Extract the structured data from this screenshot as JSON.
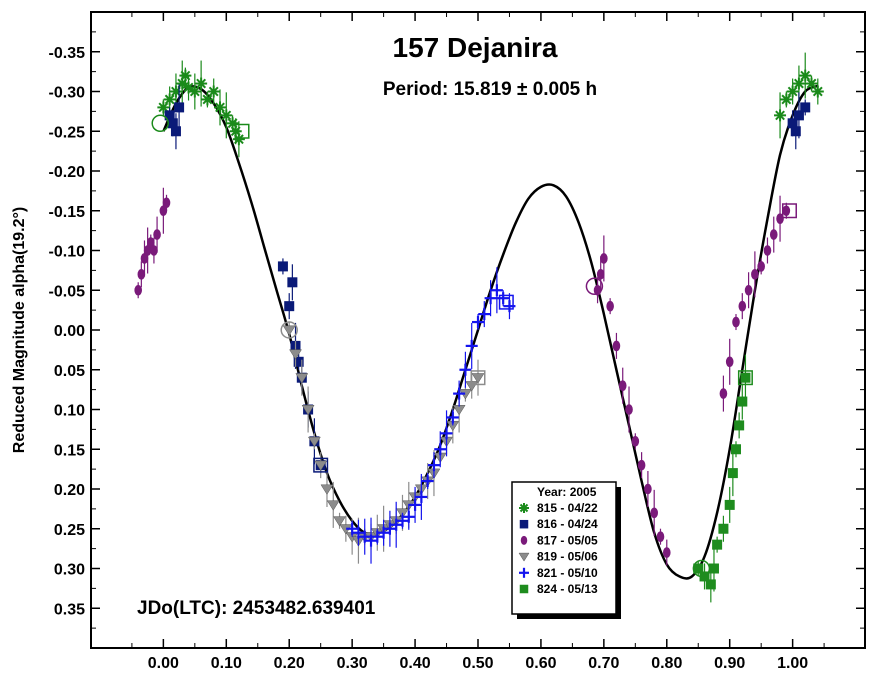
{
  "chart_data": {
    "type": "scatter",
    "title": "157 Dejanira",
    "subtitle": "Period: 15.819 ± 0.005 h",
    "annotation": "JDo(LTC): 2453482.639401",
    "xlabel": "",
    "ylabel": "Reduced Magnitude alpha(19.2°)",
    "xlim": [
      -0.115,
      1.115
    ],
    "ylim": [
      0.4,
      -0.4
    ],
    "y_inverted": true,
    "grid": false,
    "xticks": [
      0.0,
      0.1,
      0.2,
      0.3,
      0.4,
      0.5,
      0.6,
      0.7,
      0.8,
      0.9,
      1.0
    ],
    "xtick_labels": [
      "0.00",
      "0.10",
      "0.20",
      "0.30",
      "0.40",
      "0.50",
      "0.60",
      "0.70",
      "0.80",
      "0.90",
      "1.00"
    ],
    "yticks": [
      -0.35,
      -0.3,
      -0.25,
      -0.2,
      -0.15,
      -0.1,
      -0.05,
      0.0,
      0.05,
      0.1,
      0.15,
      0.2,
      0.25,
      0.3,
      0.35
    ],
    "ytick_labels": [
      "-0.35",
      "-0.30",
      "-0.25",
      "-0.20",
      "-0.15",
      "-0.10",
      "-0.05",
      "0.00",
      "0.05",
      "0.10",
      "0.15",
      "0.20",
      "0.25",
      "0.30",
      "0.35"
    ],
    "legend": {
      "placement": "bottom-right",
      "title": "Year: 2005",
      "entries": [
        {
          "label": "815 - 04/22",
          "marker": "asterisk",
          "color": "#1a8a1a"
        },
        {
          "label": "816 - 04/24",
          "marker": "square",
          "color": "#0a1a78"
        },
        {
          "label": "817 - 05/05",
          "marker": "diamond",
          "color": "#7a1a7a"
        },
        {
          "label": "819 - 05/06",
          "marker": "triangle-down",
          "color": "#8c8c8c"
        },
        {
          "label": "821 - 05/10",
          "marker": "plus",
          "color": "#1414ee"
        },
        {
          "label": "824 - 05/13",
          "marker": "square",
          "color": "#1e8c1e"
        }
      ]
    },
    "fit_curve": {
      "color": "#000000",
      "x": [
        0.0,
        0.02,
        0.04,
        0.06,
        0.08,
        0.1,
        0.12,
        0.14,
        0.16,
        0.18,
        0.2,
        0.22,
        0.24,
        0.26,
        0.28,
        0.3,
        0.32,
        0.34,
        0.36,
        0.38,
        0.4,
        0.42,
        0.44,
        0.46,
        0.48,
        0.5,
        0.52,
        0.54,
        0.56,
        0.58,
        0.6,
        0.62,
        0.64,
        0.66,
        0.68,
        0.7,
        0.72,
        0.74,
        0.76,
        0.78,
        0.8,
        0.82,
        0.84,
        0.86,
        0.88,
        0.9,
        0.92,
        0.94,
        0.96,
        0.98,
        1.0,
        1.02,
        1.04
      ],
      "y": [
        -0.25,
        -0.285,
        -0.305,
        -0.303,
        -0.285,
        -0.255,
        -0.21,
        -0.16,
        -0.105,
        -0.05,
        0.005,
        0.07,
        0.13,
        0.18,
        0.215,
        0.24,
        0.255,
        0.255,
        0.248,
        0.232,
        0.21,
        0.18,
        0.145,
        0.1,
        0.05,
        0.0,
        -0.05,
        -0.095,
        -0.135,
        -0.165,
        -0.18,
        -0.182,
        -0.168,
        -0.135,
        -0.085,
        -0.02,
        0.05,
        0.12,
        0.19,
        0.255,
        0.295,
        0.31,
        0.31,
        0.285,
        0.23,
        0.15,
        0.05,
        -0.05,
        -0.14,
        -0.22,
        -0.27,
        -0.3,
        -0.307
      ]
    },
    "series": [
      {
        "name": "815 - 04/22",
        "marker": "asterisk",
        "color": "#1a8a1a",
        "x": [
          0.0,
          0.01,
          0.02,
          0.03,
          0.035,
          0.04,
          0.05,
          0.06,
          0.07,
          0.08,
          0.09,
          0.1,
          0.11,
          0.115,
          0.12,
          0.98,
          0.99,
          1.0,
          1.01,
          1.02,
          1.03,
          1.04
        ],
        "y": [
          -0.28,
          -0.29,
          -0.3,
          -0.31,
          -0.32,
          -0.305,
          -0.3,
          -0.31,
          -0.29,
          -0.3,
          -0.28,
          -0.27,
          -0.26,
          -0.25,
          -0.24,
          -0.27,
          -0.29,
          -0.3,
          -0.31,
          -0.32,
          -0.31,
          -0.3
        ]
      },
      {
        "name": "816 - 04/24",
        "marker": "square",
        "color": "#0a1a78",
        "x": [
          0.01,
          0.015,
          0.02,
          0.025,
          0.19,
          0.2,
          0.205,
          0.21,
          0.215,
          0.22,
          0.23,
          0.24,
          0.25,
          1.0,
          1.005,
          1.01,
          1.02
        ],
        "y": [
          -0.27,
          -0.26,
          -0.25,
          -0.28,
          -0.08,
          -0.03,
          -0.06,
          0.02,
          0.04,
          0.06,
          0.1,
          0.14,
          0.17,
          -0.26,
          -0.25,
          -0.27,
          -0.28
        ]
      },
      {
        "name": "817 - 05/05",
        "marker": "diamond",
        "color": "#7a1a7a",
        "x": [
          -0.04,
          -0.035,
          -0.03,
          -0.025,
          -0.02,
          -0.015,
          -0.01,
          0.0,
          0.005,
          0.69,
          0.695,
          0.7,
          0.71,
          0.72,
          0.73,
          0.74,
          0.75,
          0.76,
          0.77,
          0.78,
          0.79,
          0.8,
          0.89,
          0.9,
          0.91,
          0.92,
          0.93,
          0.94,
          0.95,
          0.96,
          0.97,
          0.98,
          0.99
        ],
        "y": [
          -0.05,
          -0.07,
          -0.09,
          -0.1,
          -0.11,
          -0.1,
          -0.12,
          -0.15,
          -0.16,
          -0.05,
          -0.07,
          -0.09,
          -0.03,
          0.02,
          0.07,
          0.1,
          0.14,
          0.17,
          0.2,
          0.23,
          0.26,
          0.28,
          0.08,
          0.04,
          -0.01,
          -0.03,
          -0.05,
          -0.07,
          -0.08,
          -0.1,
          -0.12,
          -0.14,
          -0.15
        ]
      },
      {
        "name": "819 - 05/06",
        "marker": "triangle-down",
        "color": "#8c8c8c",
        "x": [
          0.2,
          0.21,
          0.22,
          0.23,
          0.24,
          0.25,
          0.26,
          0.27,
          0.28,
          0.29,
          0.3,
          0.31,
          0.32,
          0.33,
          0.34,
          0.35,
          0.36,
          0.37,
          0.38,
          0.39,
          0.4,
          0.41,
          0.42,
          0.43,
          0.44,
          0.45,
          0.46,
          0.47,
          0.48,
          0.49,
          0.5
        ],
        "y": [
          0.0,
          0.03,
          0.06,
          0.1,
          0.14,
          0.17,
          0.2,
          0.22,
          0.24,
          0.25,
          0.26,
          0.265,
          0.26,
          0.26,
          0.255,
          0.25,
          0.245,
          0.24,
          0.23,
          0.22,
          0.21,
          0.2,
          0.19,
          0.18,
          0.16,
          0.14,
          0.12,
          0.1,
          0.08,
          0.07,
          0.06
        ]
      },
      {
        "name": "821 - 05/10",
        "marker": "plus",
        "color": "#1414ee",
        "x": [
          0.3,
          0.31,
          0.32,
          0.33,
          0.34,
          0.35,
          0.36,
          0.37,
          0.38,
          0.39,
          0.4,
          0.41,
          0.42,
          0.43,
          0.44,
          0.45,
          0.46,
          0.47,
          0.48,
          0.49,
          0.5,
          0.51,
          0.52,
          0.53,
          0.54,
          0.55
        ],
        "y": [
          0.25,
          0.255,
          0.26,
          0.265,
          0.26,
          0.255,
          0.25,
          0.245,
          0.24,
          0.235,
          0.22,
          0.21,
          0.19,
          0.17,
          0.15,
          0.13,
          0.11,
          0.08,
          0.05,
          0.02,
          -0.01,
          -0.02,
          -0.04,
          -0.05,
          -0.04,
          -0.03
        ]
      },
      {
        "name": "824 - 05/13",
        "marker": "square",
        "color": "#1e8c1e",
        "x": [
          0.85,
          0.86,
          0.87,
          0.875,
          0.88,
          0.89,
          0.9,
          0.905,
          0.91,
          0.915,
          0.92,
          0.925
        ],
        "y": [
          0.3,
          0.31,
          0.32,
          0.3,
          0.27,
          0.25,
          0.22,
          0.18,
          0.15,
          0.12,
          0.09,
          0.06
        ]
      }
    ],
    "open_markers": [
      {
        "x": -0.005,
        "y": -0.26,
        "marker": "circle",
        "color": "#1a8a1a"
      },
      {
        "x": 0.2,
        "y": 0.0,
        "marker": "circle",
        "color": "#8c8c8c"
      },
      {
        "x": 0.125,
        "y": -0.25,
        "marker": "square",
        "color": "#1a8a1a"
      },
      {
        "x": 0.25,
        "y": 0.17,
        "marker": "square",
        "color": "#0a1a78"
      },
      {
        "x": 0.5,
        "y": 0.06,
        "marker": "square",
        "color": "#8c8c8c"
      },
      {
        "x": 0.545,
        "y": -0.035,
        "marker": "square",
        "color": "#1414ee"
      },
      {
        "x": 0.685,
        "y": -0.055,
        "marker": "circle",
        "color": "#7a1a7a"
      },
      {
        "x": 0.855,
        "y": 0.3,
        "marker": "circle",
        "color": "#1e8c1e"
      },
      {
        "x": 0.925,
        "y": 0.06,
        "marker": "square",
        "color": "#1e8c1e"
      },
      {
        "x": 0.995,
        "y": -0.15,
        "marker": "square",
        "color": "#7a1a7a"
      }
    ]
  }
}
